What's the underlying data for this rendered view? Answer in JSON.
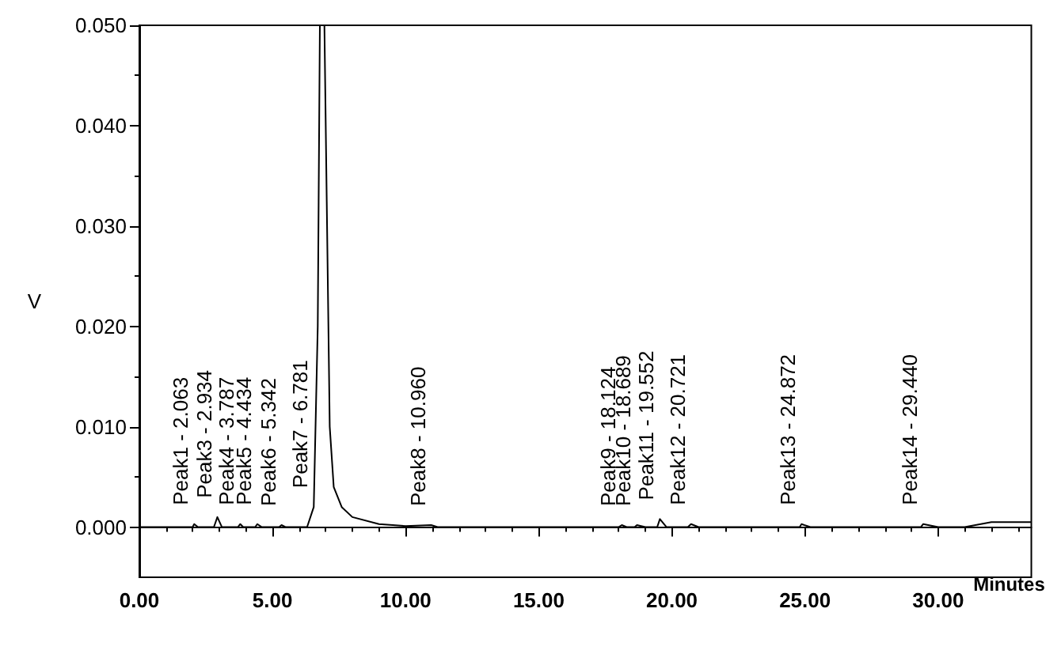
{
  "chart_data": {
    "type": "line",
    "xlabel": "Minutes",
    "ylabel": "V",
    "x": [
      0,
      1.5,
      2.0,
      2.06,
      2.2,
      2.8,
      2.93,
      3.1,
      3.7,
      3.79,
      3.9,
      4.35,
      4.43,
      4.6,
      5.25,
      5.34,
      5.5,
      6.3,
      6.55,
      6.7,
      6.78,
      6.95,
      7.05,
      7.15,
      7.3,
      7.6,
      8.0,
      9.0,
      10.0,
      10.96,
      11.2,
      18.0,
      18.12,
      18.3,
      18.6,
      18.69,
      19.0,
      19.45,
      19.55,
      19.8,
      20.6,
      20.72,
      21.0,
      24.8,
      24.87,
      25.2,
      29.35,
      29.44,
      30.0,
      31.0,
      32.0,
      33.5
    ],
    "values": [
      0,
      0,
      0,
      0.0003,
      0,
      0,
      0.001,
      0,
      0,
      0.0003,
      0,
      0,
      0.0003,
      0,
      0,
      0.0002,
      0,
      0,
      0.002,
      0.02,
      0.05,
      0.05,
      0.03,
      0.01,
      0.004,
      0.002,
      0.001,
      0.0003,
      0.0001,
      0.0002,
      0,
      0,
      0.0002,
      0,
      0,
      0.0002,
      0,
      0,
      0.0008,
      0,
      0,
      0.0003,
      0,
      0,
      0.0003,
      0,
      0,
      0.0003,
      0,
      0,
      0.0005,
      0.0005
    ],
    "color": "#000000",
    "marker": "none",
    "line_style": "solid",
    "xlim": [
      0,
      33.5
    ],
    "xticks": [
      {
        "value": 0,
        "label": "0.00"
      },
      {
        "value": 5,
        "label": "5.00"
      },
      {
        "value": 10,
        "label": "10.00"
      },
      {
        "value": 15,
        "label": "15.00"
      },
      {
        "value": 20,
        "label": "20.00"
      },
      {
        "value": 25,
        "label": "25.00"
      },
      {
        "value": 30,
        "label": "30.00"
      }
    ],
    "ylim": [
      -0.005,
      0.05
    ],
    "yticks": [
      {
        "value": 0,
        "label": "0.000"
      },
      {
        "value": 0.01,
        "label": "0.010"
      },
      {
        "value": 0.02,
        "label": "0.020"
      },
      {
        "value": 0.03,
        "label": "0.030"
      },
      {
        "value": 0.04,
        "label": "0.040"
      },
      {
        "value": 0.05,
        "label": "0.050"
      }
    ],
    "annotations": [
      {
        "text": "Peak1 - 2.063",
        "x": 2.06,
        "y": 0.0003
      },
      {
        "text": "Peak3 - 2.934",
        "x": 2.93,
        "y": 0.001
      },
      {
        "text": "Peak4 - 3.787",
        "x": 3.79,
        "y": 0.0003
      },
      {
        "text": "Peak5 - 4.434",
        "x": 4.43,
        "y": 0.0003
      },
      {
        "text": "Peak6 - 5.342",
        "x": 5.34,
        "y": 0.0002
      },
      {
        "text": "Peak7 - 6.781",
        "x": 6.55,
        "y": 0.002
      },
      {
        "text": "Peak8 - 10.960",
        "x": 10.96,
        "y": 0.0002
      },
      {
        "text": "Peak9 - 18.124",
        "x": 18.12,
        "y": 0.0002
      },
      {
        "text": "Peak10 - 18.689",
        "x": 18.69,
        "y": 0.0002
      },
      {
        "text": "Peak11 - 19.552",
        "x": 19.55,
        "y": 0.0008
      },
      {
        "text": "Peak12 - 20.721",
        "x": 20.72,
        "y": 0.0003
      },
      {
        "text": "Peak13 - 24.872",
        "x": 24.87,
        "y": 0.0003
      },
      {
        "text": "Peak14 - 29.440",
        "x": 29.44,
        "y": 0.0003
      }
    ]
  }
}
